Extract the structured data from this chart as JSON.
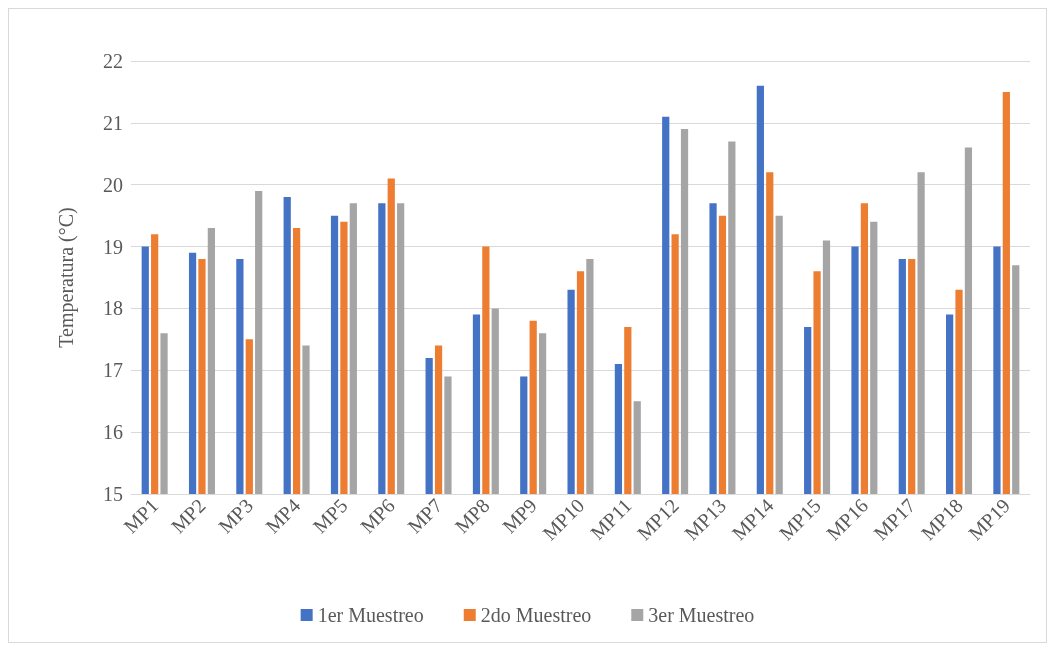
{
  "chart_data": {
    "type": "bar",
    "ylabel": "Temperatura (°C)",
    "categories": [
      "MP1",
      "MP2",
      "MP3",
      "MP4",
      "MP5",
      "MP6",
      "MP7",
      "MP8",
      "MP9",
      "MP10",
      "MP11",
      "MP12",
      "MP13",
      "MP14",
      "MP15",
      "MP16",
      "MP17",
      "MP18",
      "MP19"
    ],
    "series": [
      {
        "name": "1er Muestreo",
        "color": "#4472c4",
        "values": [
          19.0,
          18.9,
          18.8,
          19.8,
          19.5,
          19.7,
          17.2,
          17.9,
          16.9,
          18.3,
          17.1,
          21.1,
          19.7,
          21.6,
          17.7,
          19.0,
          18.8,
          17.9,
          19.0
        ]
      },
      {
        "name": "2do Muestreo",
        "color": "#ed7d31",
        "values": [
          19.2,
          18.8,
          17.5,
          19.3,
          19.4,
          20.1,
          17.4,
          19.0,
          17.8,
          18.6,
          17.7,
          19.2,
          19.5,
          20.2,
          18.6,
          19.7,
          18.8,
          18.3,
          21.5
        ]
      },
      {
        "name": "3er Muestreo",
        "color": "#a5a5a5",
        "values": [
          17.6,
          19.3,
          19.9,
          17.4,
          19.7,
          19.7,
          16.9,
          18.0,
          17.6,
          18.8,
          16.5,
          20.9,
          20.7,
          19.5,
          19.1,
          19.4,
          20.2,
          20.6,
          18.7
        ]
      }
    ],
    "ylim": [
      15,
      22
    ],
    "yticks": [
      15,
      16,
      17,
      18,
      19,
      20,
      21,
      22
    ],
    "grid": "y",
    "legend": "bottom"
  }
}
